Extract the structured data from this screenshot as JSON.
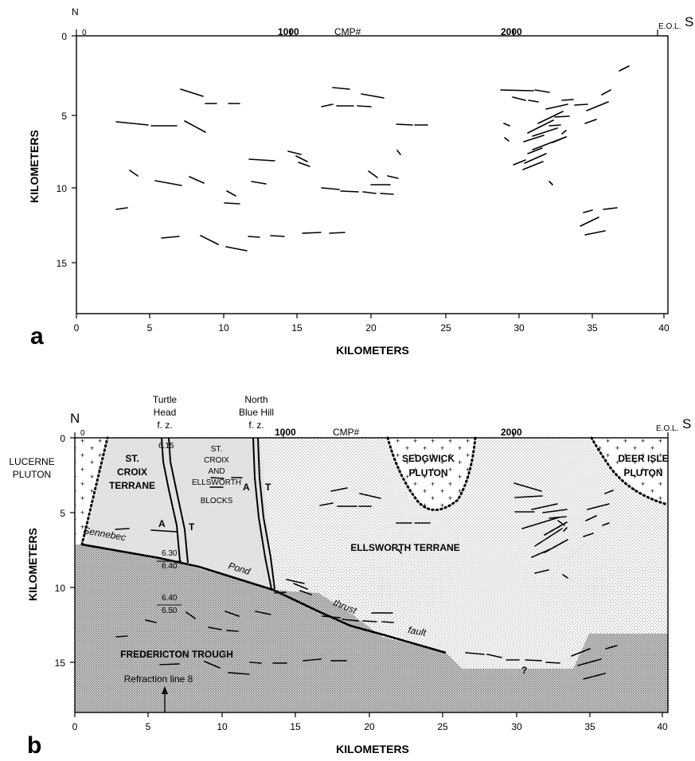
{
  "panel_a": {
    "panel_label": "a",
    "north": "N",
    "south": "S",
    "eol": "E.O.L.",
    "cmp_label": "CMP#",
    "cmp_ticks": [
      "0",
      "1000",
      "2000"
    ],
    "xlabel": "KILOMETERS",
    "ylabel": "KILOMETERS",
    "xticks": [
      "0",
      "5",
      "10",
      "15",
      "20",
      "25",
      "30",
      "35",
      "40"
    ],
    "yticks": [
      "0",
      "5",
      "10",
      "15"
    ]
  },
  "panel_b": {
    "panel_label": "b",
    "north": "N",
    "south": "S",
    "eol": "E.O.L.",
    "cmp_label": "CMP#",
    "cmp_ticks": [
      "0",
      "1000",
      "2000"
    ],
    "xlabel": "KILOMETERS",
    "ylabel": "KILOMETERS",
    "xticks": [
      "0",
      "5",
      "10",
      "15",
      "20",
      "25",
      "30",
      "35",
      "40"
    ],
    "yticks": [
      "0",
      "5",
      "10",
      "15"
    ],
    "fz1": [
      "Turtle",
      "Head",
      "f. z."
    ],
    "fz2": [
      "North",
      "Blue Hill",
      "f. z."
    ],
    "lucerne": [
      "LUCERNE",
      "PLUTON"
    ],
    "st_croix_terrane": [
      "ST.",
      "CROIX",
      "TERRANE"
    ],
    "blocks": [
      "ST.",
      "CROIX",
      "AND",
      "ELLSWORTH"
    ],
    "blocks_word": "BLOCKS",
    "sedgwick": [
      "SEDGWICK",
      "PLUTON"
    ],
    "deer_isle": [
      "DEER ISLE",
      "PLUTON"
    ],
    "ellsworth": "ELLSWORTH TERRANE",
    "fredericton": "FREDERICTON TROUGH",
    "refraction": "Refraction line 8",
    "fault_words": [
      "Sennebec",
      "Pond",
      "thrust",
      "fault"
    ],
    "velocities": [
      "6.15",
      "6.30",
      "6.40",
      "6.40",
      "6.50"
    ],
    "motion_A": "A",
    "motion_T": "T",
    "question": "?"
  }
}
